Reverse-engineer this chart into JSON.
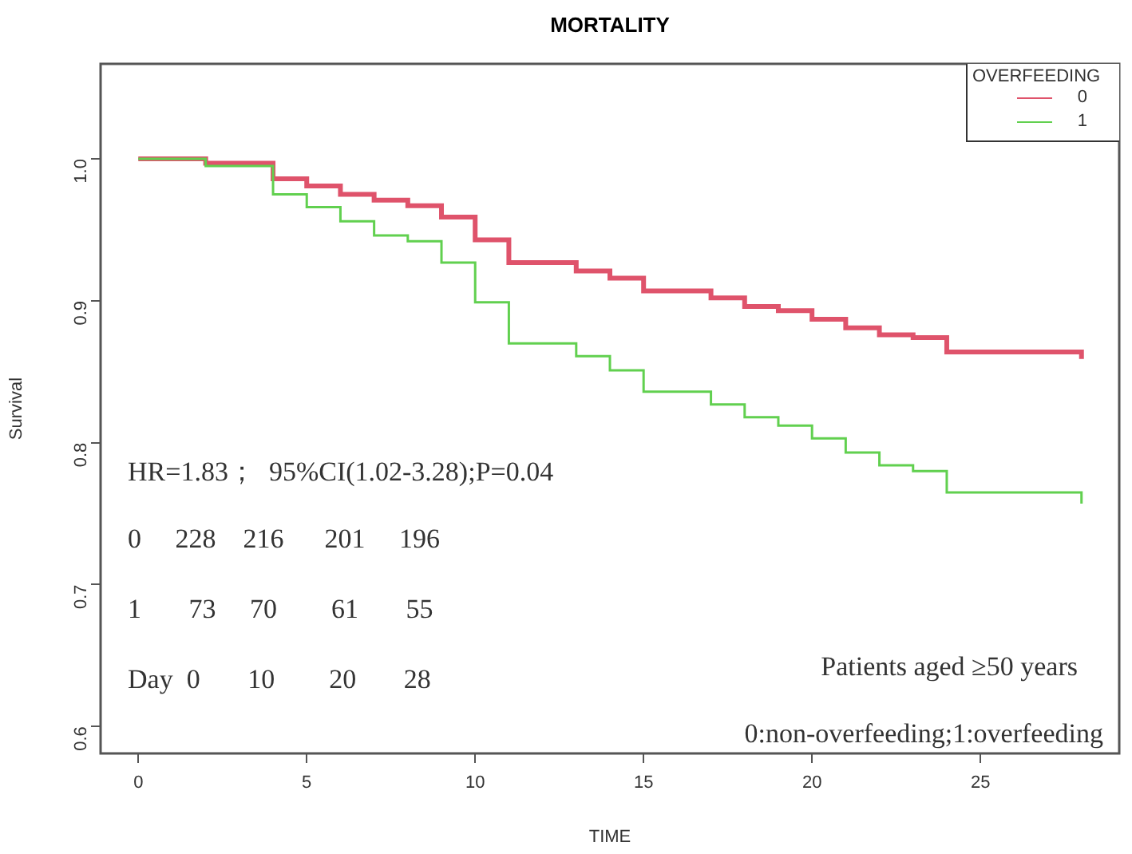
{
  "chart_data": {
    "type": "step",
    "title": "MORTALITY",
    "xlabel": "TIME",
    "ylabel": "Survival",
    "legend_title": "OVERFEEDING",
    "legend": "top right",
    "x": [
      0,
      2,
      4,
      5,
      6,
      7,
      8,
      9,
      10,
      11,
      13,
      14,
      15,
      17,
      18,
      19,
      20,
      21,
      22,
      23,
      24,
      28
    ],
    "series": [
      {
        "name": "0",
        "color": "#df536b",
        "values": [
          1,
          0.997,
          0.986,
          0.981,
          0.975,
          0.971,
          0.967,
          0.959,
          0.943,
          0.927,
          0.921,
          0.916,
          0.907,
          0.902,
          0.896,
          0.893,
          0.887,
          0.881,
          0.876,
          0.874,
          0.864,
          0.859
        ]
      },
      {
        "name": "1",
        "color": "#61d04f",
        "values": [
          1,
          0.995,
          0.975,
          0.966,
          0.956,
          0.946,
          0.942,
          0.927,
          0.899,
          0.87,
          0.861,
          0.851,
          0.836,
          0.827,
          0.818,
          0.812,
          0.803,
          0.793,
          0.784,
          0.78,
          0.765,
          0.757
        ]
      }
    ],
    "xlim": [
      -1.12,
      29.12
    ],
    "xticks": [
      0,
      5,
      10,
      15,
      20,
      25
    ],
    "ylim": [
      0.581,
      1.067
    ],
    "yticks": [
      0.6,
      0.7,
      0.8,
      0.9,
      {
        "value": 1,
        "label": "1.0"
      }
    ],
    "annotations": [
      "HR=1.83；  95%CI(1.02-3.28);P=0.04",
      "0     228    216      201     196",
      "1       73     70        61       55",
      "Day  0       10        20       28",
      "Patients aged ≥50 years",
      "0:non-overfeeding;1:overfeeding"
    ]
  }
}
